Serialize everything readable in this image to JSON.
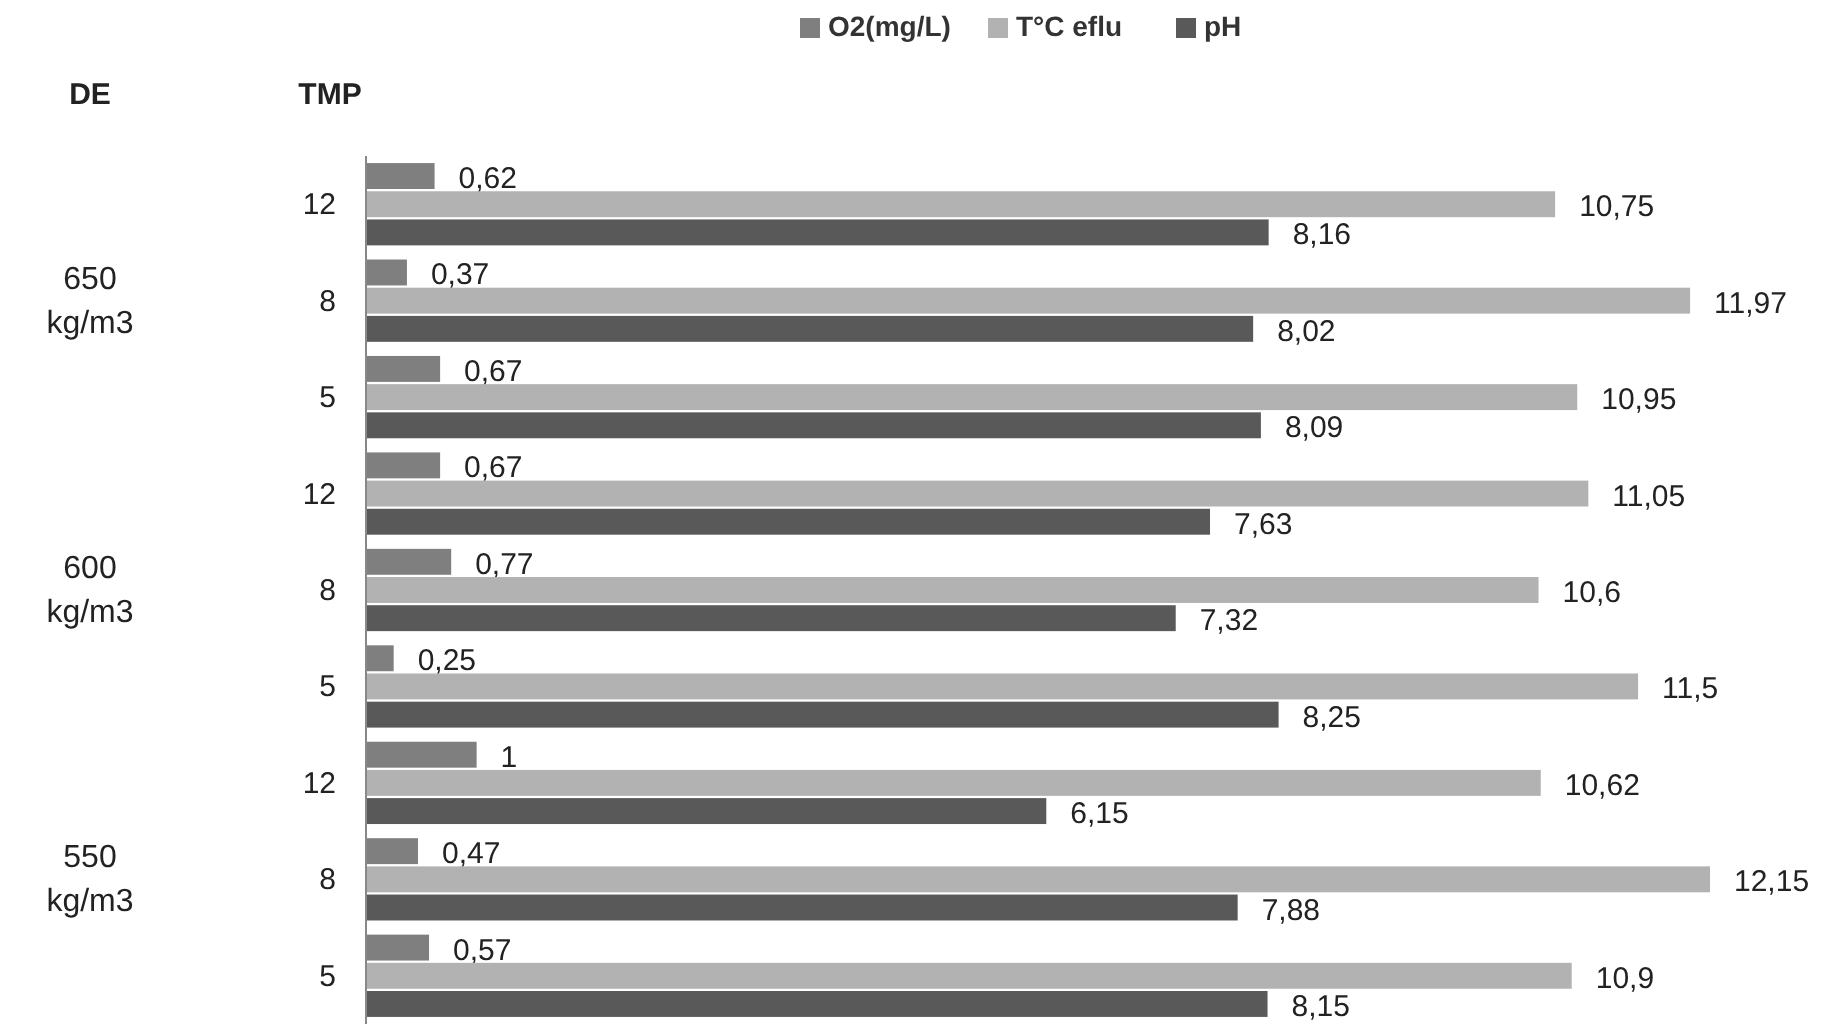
{
  "chart_data": {
    "type": "bar",
    "orientation": "horizontal",
    "ylabel": "TMP",
    "annotations": [
      "DE",
      "650 kg/m3",
      "600 kg/m3",
      "550 kg/m3"
    ],
    "categories": [
      "12",
      "8",
      "5",
      "12",
      "8",
      "5",
      "12",
      "8",
      "5"
    ],
    "tick_labels": "y",
    "legend": "top",
    "series": [
      {
        "name": "O2(mg/L)",
        "color": "#7f7f7f",
        "values": [
          0.62,
          0.37,
          0.67,
          0.67,
          0.77,
          0.25,
          1,
          0.47,
          0.57
        ],
        "value_labels": [
          "0,62",
          "0,37",
          "0,67",
          "0,67",
          "0,77",
          "0,25",
          "1",
          "0,47",
          "0,57"
        ]
      },
      {
        "name": "T°C eflu",
        "color": "#b2b2b2",
        "values": [
          10.75,
          11.97,
          10.95,
          11.05,
          10.6,
          11.5,
          10.62,
          12.15,
          10.9
        ],
        "value_labels": [
          "10,75",
          "11,97",
          "10,95",
          "11,05",
          "10,6",
          "11,5",
          "10,62",
          "12,15",
          "10,9"
        ]
      },
      {
        "name": "pH",
        "color": "#595959",
        "values": [
          8.16,
          8.02,
          8.09,
          7.63,
          7.32,
          8.25,
          6.15,
          7.88,
          8.15
        ],
        "value_labels": [
          "8,16",
          "8,02",
          "8,09",
          "7,63",
          "7,32",
          "8,25",
          "6,15",
          "7,88",
          "8,15"
        ]
      }
    ]
  }
}
